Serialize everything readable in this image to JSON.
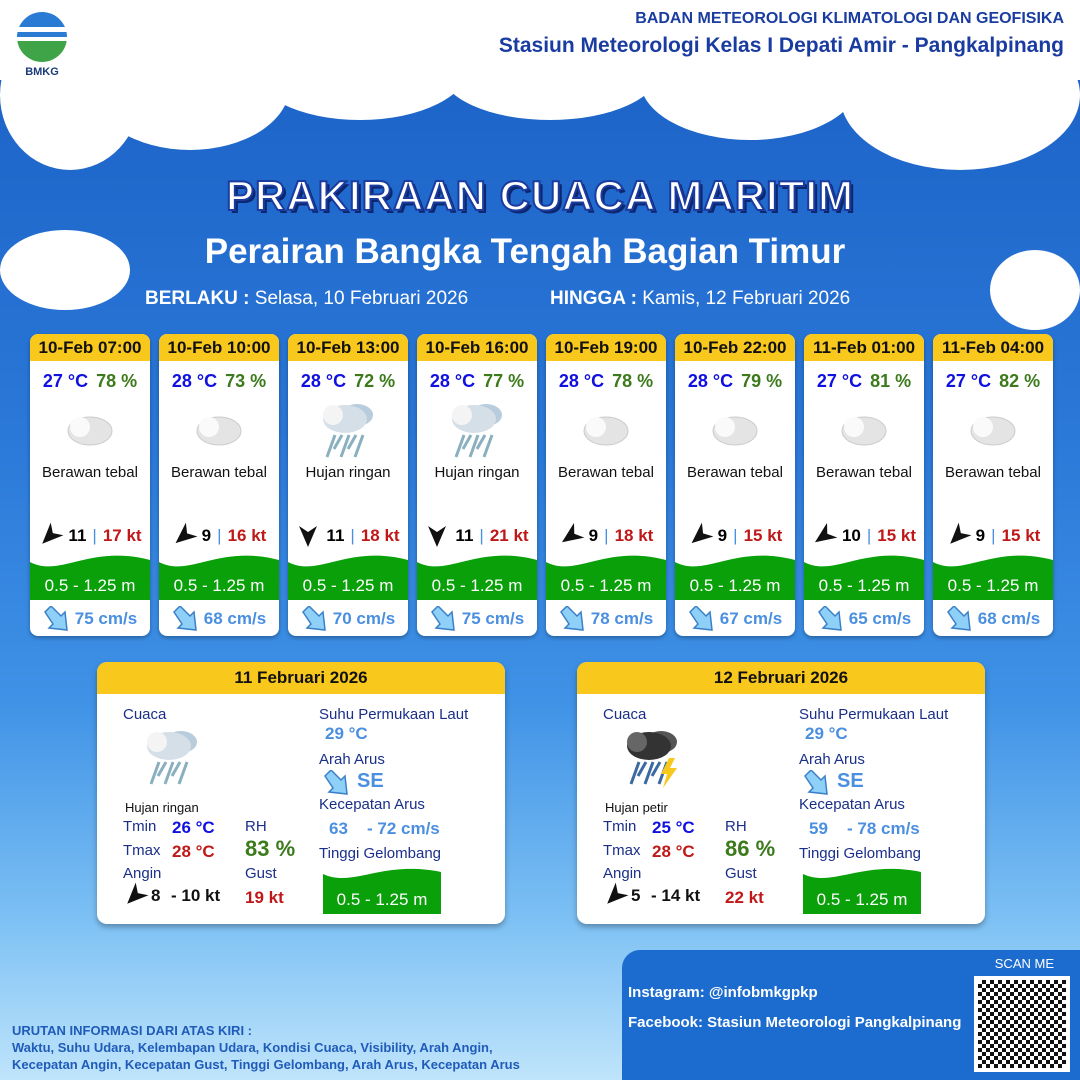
{
  "header": {
    "logo_text": "BMKG",
    "org_line1": "BADAN METEOROLOGI KLIMATOLOGI DAN GEOFISIKA",
    "org_line2": "Stasiun Meteorologi Kelas I Depati Amir - Pangkalpinang"
  },
  "title": "PRAKIRAAN CUACA MARITIM",
  "subtitle": "Perairan Bangka Tengah Bagian Timur",
  "validity": {
    "from_label": "BERLAKU :",
    "from_value": "Selasa, 10 Februari 2026",
    "to_label": "HINGGA :",
    "to_value": "Kamis, 12 Februari 2026"
  },
  "colors": {
    "header_yellow": "#f8c81c",
    "wave_green": "#0aa00a",
    "temp": "#1010e0",
    "rh": "#3c7a1c",
    "gust": "#c01818",
    "current": "#4a8fe0"
  },
  "forecasts": [
    {
      "time": "10-Feb 07:00",
      "temp": "27 °C",
      "rh": "78 %",
      "icon": "cloud-icon",
      "cond": "Berawan tebal",
      "wind": "11",
      "gust": "17 kt",
      "wind_dir_deg": 225,
      "wave": "0.5 - 1.25 m",
      "current": "75 cm/s"
    },
    {
      "time": "10-Feb 10:00",
      "temp": "28 °C",
      "rh": "73 %",
      "icon": "cloud-icon",
      "cond": "Berawan tebal",
      "wind": "9",
      "gust": "16 kt",
      "wind_dir_deg": 230,
      "wave": "0.5 - 1.25 m",
      "current": "68 cm/s"
    },
    {
      "time": "10-Feb 13:00",
      "temp": "28 °C",
      "rh": "72 %",
      "icon": "rain-icon",
      "cond": "Hujan ringan",
      "wind": "11",
      "gust": "18 kt",
      "wind_dir_deg": 180,
      "wave": "0.5 - 1.25 m",
      "current": "70 cm/s"
    },
    {
      "time": "10-Feb 16:00",
      "temp": "28 °C",
      "rh": "77 %",
      "icon": "rain-icon",
      "cond": "Hujan ringan",
      "wind": "11",
      "gust": "21 kt",
      "wind_dir_deg": 180,
      "wave": "0.5 - 1.25 m",
      "current": "75 cm/s"
    },
    {
      "time": "10-Feb 19:00",
      "temp": "28 °C",
      "rh": "78 %",
      "icon": "cloud-icon",
      "cond": "Berawan tebal",
      "wind": "9",
      "gust": "18 kt",
      "wind_dir_deg": 235,
      "wave": "0.5 - 1.25 m",
      "current": "78 cm/s"
    },
    {
      "time": "10-Feb 22:00",
      "temp": "28 °C",
      "rh": "79 %",
      "icon": "cloud-icon",
      "cond": "Berawan tebal",
      "wind": "9",
      "gust": "15 kt",
      "wind_dir_deg": 230,
      "wave": "0.5 - 1.25 m",
      "current": "67 cm/s"
    },
    {
      "time": "11-Feb 01:00",
      "temp": "27 °C",
      "rh": "81 %",
      "icon": "cloud-icon",
      "cond": "Berawan tebal",
      "wind": "10",
      "gust": "15 kt",
      "wind_dir_deg": 235,
      "wave": "0.5 - 1.25 m",
      "current": "65 cm/s"
    },
    {
      "time": "11-Feb 04:00",
      "temp": "27 °C",
      "rh": "82 %",
      "icon": "cloud-icon",
      "cond": "Berawan tebal",
      "wind": "9",
      "gust": "15 kt",
      "wind_dir_deg": 225,
      "wave": "0.5 - 1.25 m",
      "current": "68 cm/s"
    }
  ],
  "labels": {
    "cuaca": "Cuaca",
    "tmin": "Tmin",
    "tmax": "Tmax",
    "angin": "Angin",
    "rh": "RH",
    "gust": "Gust",
    "sst": "Suhu Permukaan Laut",
    "arah": "Arah Arus",
    "kec": "Kecepatan Arus",
    "tinggi": "Tinggi Gelombang"
  },
  "daily": [
    {
      "date": "11 Februari 2026",
      "icon": "rain-icon",
      "cond": "Hujan ringan",
      "tmin": "26 °C",
      "tmax": "28 °C",
      "rh": "83 %",
      "wind_min": "8",
      "wind_max": "- 10 kt",
      "gust": "19 kt",
      "sst": "29 °C",
      "dir": "SE",
      "cur_min": "63",
      "cur_max": "- 72 cm/s",
      "wave": "0.5 - 1.25 m"
    },
    {
      "date": "12 Februari 2026",
      "icon": "thunderstorm-icon",
      "cond": "Hujan petir",
      "tmin": "25 °C",
      "tmax": "28 °C",
      "rh": "86 %",
      "wind_min": "5",
      "wind_max": "- 14 kt",
      "gust": "22 kt",
      "sst": "29 °C",
      "dir": "SE",
      "cur_min": "59",
      "cur_max": "- 78 cm/s",
      "wave": "0.5 - 1.25 m"
    }
  ],
  "footer": {
    "heading": "URUTAN INFORMASI DARI ATAS KIRI :",
    "line1": "Waktu, Suhu Udara, Kelembapan Udara, Kondisi Cuaca, Visibility, Arah Angin,",
    "line2": "Kecepatan Angin, Kecepatan Gust, Tinggi Gelombang, Arah Arus, Kecepatan Arus"
  },
  "social": {
    "instagram": "Instagram:  @infobmkgpkp",
    "facebook": "Facebook:  Stasiun  Meteorologi  Pangkalpinang",
    "scan": "SCAN ME"
  }
}
